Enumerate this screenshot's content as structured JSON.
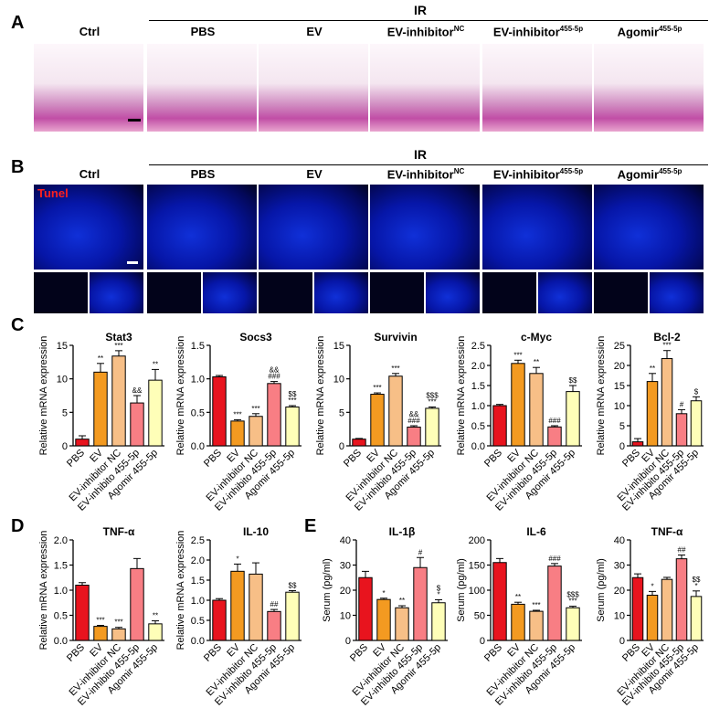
{
  "panels": {
    "A": "A",
    "B": "B",
    "C": "C",
    "D": "D",
    "E": "E"
  },
  "group_label": "IR",
  "columns": [
    {
      "base": "Ctrl",
      "sup": ""
    },
    {
      "base": "PBS",
      "sup": ""
    },
    {
      "base": "EV",
      "sup": ""
    },
    {
      "base": "EV-inhibitor",
      "sup": "NC"
    },
    {
      "base": "EV-inhibitor",
      "sup": "455-5p"
    },
    {
      "base": "Agomir",
      "sup": "455-5p"
    }
  ],
  "tunel_label": "Tunel",
  "colors": {
    "red": "#e8141e",
    "orange": "#f39a21",
    "peach": "#f7bf87",
    "pink": "#f87e84",
    "cream": "#fefeb8"
  },
  "chart_data": [
    {
      "type": "bar",
      "title": "Stat3",
      "ylabel": "Relative mRNA expression",
      "categories": [
        "PBS",
        "EV",
        "EV-inhibitor NC",
        "EV-inhibito 455-5p",
        "Agomir 455-5p"
      ],
      "values": [
        1.0,
        11.0,
        13.4,
        6.4,
        9.8
      ],
      "errors": [
        0.5,
        1.3,
        0.8,
        1.1,
        1.6
      ],
      "annotations": [
        "",
        "**",
        "***",
        "&&",
        "**"
      ],
      "ylim": [
        0,
        15
      ],
      "yticks": [
        0,
        5,
        10,
        15
      ],
      "ytick_labels": [
        "0",
        "5",
        "10",
        "15"
      ]
    },
    {
      "type": "bar",
      "title": "Socs3",
      "ylabel": "Relative mRNA expression",
      "categories": [
        "PBS",
        "EV",
        "EV-inhibitor NC",
        "EV-inhibito 455-5p",
        "Agomir 455-5p"
      ],
      "values": [
        1.03,
        0.37,
        0.44,
        0.93,
        0.58
      ],
      "errors": [
        0.02,
        0.02,
        0.04,
        0.03,
        0.02
      ],
      "annotations": [
        "",
        "***",
        "***",
        "&& ###",
        "$$ ***"
      ],
      "ylim": [
        0,
        1.5
      ],
      "yticks": [
        0,
        0.5,
        1.0,
        1.5
      ],
      "ytick_labels": [
        "0.0",
        "0.5",
        "1.0",
        "1.5"
      ]
    },
    {
      "type": "bar",
      "title": "Survivin",
      "ylabel": "Relative mRNA expression",
      "categories": [
        "PBS",
        "EV",
        "EV-inhibitor NC",
        "EV-inhibito 455-5p",
        "Agomir 455-5p"
      ],
      "values": [
        1.0,
        7.7,
        10.4,
        2.8,
        5.6
      ],
      "errors": [
        0.1,
        0.2,
        0.4,
        0.2,
        0.2
      ],
      "annotations": [
        "",
        "***",
        "***",
        "&& ###",
        "$$$ ***"
      ],
      "ylim": [
        0,
        15
      ],
      "yticks": [
        0,
        5,
        10,
        15
      ],
      "ytick_labels": [
        "0",
        "5",
        "10",
        "15"
      ]
    },
    {
      "type": "bar",
      "title": "c-Myc",
      "ylabel": "Relative mRNA expression",
      "categories": [
        "PBS",
        "EV",
        "EV-inhibitor NC",
        "EV-inhibito 455-5p",
        "Agomir 455-5p"
      ],
      "values": [
        1.0,
        2.05,
        1.8,
        0.47,
        1.35
      ],
      "errors": [
        0.03,
        0.08,
        0.15,
        0.03,
        0.15
      ],
      "annotations": [
        "",
        "***",
        "**",
        "###",
        "$$"
      ],
      "ylim": [
        0,
        2.5
      ],
      "yticks": [
        0,
        0.5,
        1.0,
        1.5,
        2.0,
        2.5
      ],
      "ytick_labels": [
        "0.0",
        "0.5",
        "1.0",
        "1.5",
        "2.0",
        "2.5"
      ]
    },
    {
      "type": "bar",
      "title": "Bcl-2",
      "ylabel": "Relative mRNA expression",
      "categories": [
        "PBS",
        "EV",
        "EV-inhibitor NC",
        "EV-inhibito 455-5p",
        "Agomir 455-5p"
      ],
      "values": [
        1.0,
        16.0,
        21.7,
        8.0,
        11.2
      ],
      "errors": [
        0.8,
        2.0,
        2.0,
        1.0,
        1.0
      ],
      "annotations": [
        "",
        "**",
        "***",
        "#",
        "$"
      ],
      "ylim": [
        0,
        25
      ],
      "yticks": [
        0,
        5,
        10,
        15,
        20,
        25
      ],
      "ytick_labels": [
        "0",
        "5",
        "10",
        "15",
        "20",
        "25"
      ]
    },
    {
      "type": "bar",
      "title": "TNF-α",
      "ylabel": "Relative mRNA expression",
      "categories": [
        "PBS",
        "EV",
        "EV-inhibitor NC",
        "EV-inhibito 455-5p",
        "Agomir 455-5p"
      ],
      "values": [
        1.1,
        0.28,
        0.23,
        1.43,
        0.33
      ],
      "errors": [
        0.05,
        0.02,
        0.03,
        0.2,
        0.06
      ],
      "annotations": [
        "",
        "***",
        "***",
        "",
        "**"
      ],
      "ylim": [
        0,
        2.0
      ],
      "yticks": [
        0,
        0.5,
        1.0,
        1.5,
        2.0
      ],
      "ytick_labels": [
        "0.0",
        "0.5",
        "1.0",
        "1.5",
        "2.0"
      ]
    },
    {
      "type": "bar",
      "title": "IL-10",
      "ylabel": "Relative mRNA expression",
      "categories": [
        "PBS",
        "EV",
        "EV-inhibitor NC",
        "EV-inhibito 455-5p",
        "Agomir 455-5p"
      ],
      "values": [
        1.0,
        1.72,
        1.65,
        0.72,
        1.2
      ],
      "errors": [
        0.04,
        0.18,
        0.28,
        0.05,
        0.04
      ],
      "annotations": [
        "",
        "*",
        "",
        "##",
        "$$"
      ],
      "ylim": [
        0,
        2.5
      ],
      "yticks": [
        0,
        0.5,
        1.0,
        1.5,
        2.0,
        2.5
      ],
      "ytick_labels": [
        "0.0",
        "0.5",
        "1.0",
        "1.5",
        "2.0",
        "2.5"
      ]
    },
    {
      "type": "bar",
      "title": "IL-1β",
      "ylabel": "Serum (pg/ml)",
      "categories": [
        "PBS",
        "EV",
        "EV-inhibitor NC",
        "EV-inhibito 455-5p",
        "Agomir 455-5p"
      ],
      "values": [
        25.0,
        16.3,
        13.0,
        29.0,
        15.0
      ],
      "errors": [
        2.5,
        0.5,
        0.8,
        4.0,
        1.2
      ],
      "annotations": [
        "",
        "*",
        "**",
        "#",
        "$ *"
      ],
      "ylim": [
        0,
        40
      ],
      "yticks": [
        0,
        10,
        20,
        30,
        40
      ],
      "ytick_labels": [
        "0",
        "10",
        "20",
        "30",
        "40"
      ]
    },
    {
      "type": "bar",
      "title": "IL-6",
      "ylabel": "Serum (pg/ml)",
      "categories": [
        "PBS",
        "EV",
        "EV-inhibitor NC",
        "EV-inhibito 455-5p",
        "Agomir 455-5p"
      ],
      "values": [
        155,
        72,
        58,
        148,
        65
      ],
      "errors": [
        8,
        4,
        2,
        5,
        3
      ],
      "annotations": [
        "",
        "**",
        "***",
        "###",
        "$$$ ***"
      ],
      "ylim": [
        0,
        200
      ],
      "yticks": [
        0,
        50,
        100,
        150,
        200
      ],
      "ytick_labels": [
        "0",
        "50",
        "100",
        "150",
        "200"
      ]
    },
    {
      "type": "bar",
      "title": "TNF-α",
      "ylabel": "Serum (pg/ml)",
      "categories": [
        "PBS",
        "EV",
        "EV-inhibitor NC",
        "EV-inhibito 455-5p",
        "Agomir 455-5p"
      ],
      "values": [
        25.0,
        18.0,
        24.3,
        32.5,
        17.5
      ],
      "errors": [
        1.5,
        1.5,
        0.8,
        1.5,
        2.2
      ],
      "annotations": [
        "",
        "*",
        "",
        "##",
        "$$ *"
      ],
      "ylim": [
        0,
        40
      ],
      "yticks": [
        0,
        10,
        20,
        30,
        40
      ],
      "ytick_labels": [
        "0",
        "10",
        "20",
        "30",
        "40"
      ]
    }
  ]
}
